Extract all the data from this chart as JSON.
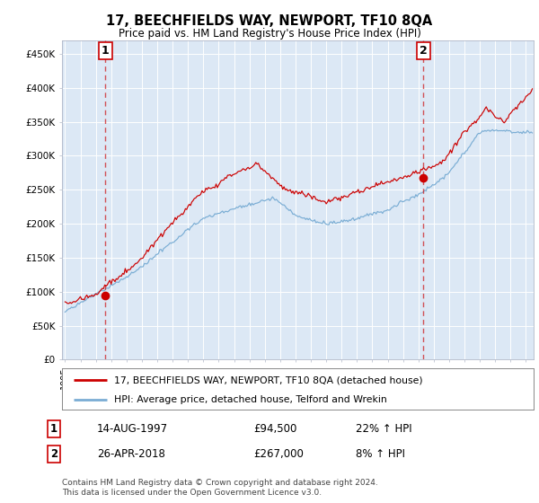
{
  "title": "17, BEECHFIELDS WAY, NEWPORT, TF10 8QA",
  "subtitle": "Price paid vs. HM Land Registry's House Price Index (HPI)",
  "legend_line1": "17, BEECHFIELDS WAY, NEWPORT, TF10 8QA (detached house)",
  "legend_line2": "HPI: Average price, detached house, Telford and Wrekin",
  "annotation1_label": "1",
  "annotation1_date": "14-AUG-1997",
  "annotation1_price": "£94,500",
  "annotation1_hpi": "22% ↑ HPI",
  "annotation2_label": "2",
  "annotation2_date": "26-APR-2018",
  "annotation2_price": "£267,000",
  "annotation2_hpi": "8% ↑ HPI",
  "footer": "Contains HM Land Registry data © Crown copyright and database right 2024.\nThis data is licensed under the Open Government Licence v3.0.",
  "red_color": "#cc0000",
  "blue_color": "#7aadd4",
  "bg_color": "#ffffff",
  "plot_bg_color": "#dce8f5",
  "grid_color": "#ffffff",
  "sale1_year": 1997.62,
  "sale1_value": 94500,
  "sale2_year": 2018.32,
  "sale2_value": 267000,
  "ylim_min": 0,
  "ylim_max": 470000,
  "xlim_start": 1994.8,
  "xlim_end": 2025.5
}
